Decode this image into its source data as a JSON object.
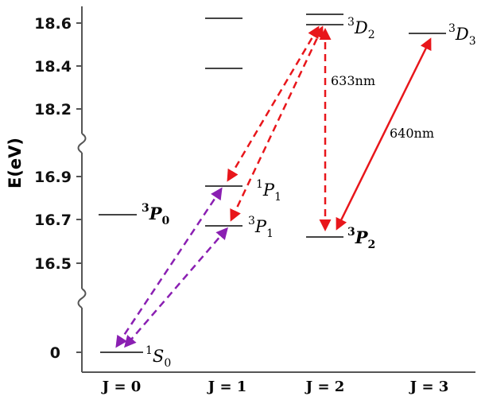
{
  "axis": {
    "title": "E(eV)",
    "ticks": [
      "18.6",
      "18.4",
      "18.2",
      "16.9",
      "16.7",
      "16.5",
      "0"
    ]
  },
  "j_labels": [
    "J = 0",
    "J = 1",
    "J = 2",
    "J = 3"
  ],
  "states": {
    "s0": {
      "sup": "1",
      "letter": "S",
      "sub": "0"
    },
    "p0": {
      "sup": "3",
      "letter": "P",
      "sub": "0"
    },
    "p1_singlet": {
      "sup": "1",
      "letter": "P",
      "sub": "1"
    },
    "p1_triplet": {
      "sup": "3",
      "letter": "P",
      "sub": "1"
    },
    "d2": {
      "sup": "3",
      "letter": "D",
      "sub": "2"
    },
    "p2": {
      "sup": "3",
      "letter": "P",
      "sub": "2"
    },
    "d3": {
      "sup": "3",
      "letter": "D",
      "sub": "3"
    }
  },
  "transitions": {
    "t633": "633nm",
    "t640": "640nm"
  },
  "colors": {
    "red": "#e8161b",
    "purple": "#8a1fb2",
    "level": "#444444",
    "axis": "#555555"
  }
}
